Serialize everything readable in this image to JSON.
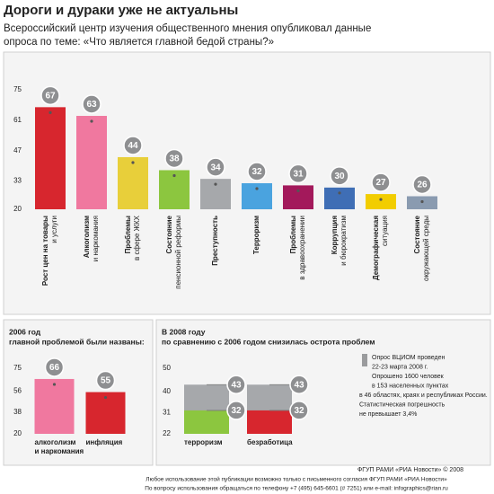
{
  "header": {
    "title": "Дороги и дураки уже не актуальны",
    "subtitle": [
      "Всероссийский центр изучения общественного мнения опубликовал данные",
      "опроса по теме: «Что является главной бедой страны?»"
    ]
  },
  "chart_data": [
    {
      "type": "bar",
      "categories": [
        [
          "Рост цен на товары",
          "и услуги"
        ],
        [
          "Алкоголизм",
          "и наркомания"
        ],
        [
          "Проблемы",
          "в сфере ЖКХ"
        ],
        [
          "Состояние",
          "пенсионной реформы"
        ],
        [
          "Преступность"
        ],
        [
          "Терроризм"
        ],
        [
          "Проблемы",
          "в здравоохранении"
        ],
        [
          "Коррупция",
          "и бюрократизм"
        ],
        [
          "Демографическая",
          "ситуация"
        ],
        [
          "Состояние",
          "окружающей среды"
        ]
      ],
      "values": [
        67,
        63,
        44,
        38,
        34,
        32,
        31,
        30,
        27,
        26
      ],
      "colors": [
        "#d7262e",
        "#f0789f",
        "#e8cf3a",
        "#8cc63f",
        "#a6a8ab",
        "#4aa3df",
        "#a3195b",
        "#3f6eb5",
        "#f2cd00",
        "#8a9bb0"
      ],
      "ylim": [
        20,
        75
      ],
      "yticks": [
        20,
        33,
        47,
        61,
        75
      ]
    },
    {
      "type": "bar",
      "title": [
        "2006 год",
        "главной проблемой были названы:"
      ],
      "categories": [
        [
          "алкоголизм",
          "и наркомания"
        ],
        [
          "инфляция"
        ]
      ],
      "values": [
        66,
        55
      ],
      "colors": [
        "#f0789f",
        "#d7262e"
      ],
      "ylim": [
        20,
        75
      ],
      "yticks": [
        20,
        38,
        56,
        75
      ]
    },
    {
      "type": "bar",
      "title": [
        "В 2008 году",
        "по сравнению с 2006 годом снизилась острота проблем"
      ],
      "categories": [
        [
          "терроризм"
        ],
        [
          "безработица"
        ]
      ],
      "series": [
        {
          "color": "#a6a8ab",
          "values": [
            43,
            43
          ]
        },
        {
          "colors": [
            "#8cc63f",
            "#d7262e"
          ],
          "values": [
            32,
            32
          ]
        }
      ],
      "ylim": [
        22,
        50
      ],
      "yticks": [
        22,
        31,
        40,
        50
      ]
    }
  ],
  "note": [
    "Опрос ВЦИОМ проведен",
    "22-23 марта 2008 г.",
    "Опрошено 1600 человек",
    "в 153 населенных пунктах",
    "в 46 областях, краях и республиках России.",
    "Статистическая погрешность",
    "не превышает 3,4%"
  ],
  "footer": [
    "ФГУП РАМИ «РИА Новости» © 2008",
    "Любое использование этой публикации возможно только с письменного согласия  ФГУП РАМИ «РИА Новости»",
    "По вопросу использования обращаться по телефону +7 (495) 645-6601 (# 7251) или e-mail: infographics@rian.ru"
  ]
}
